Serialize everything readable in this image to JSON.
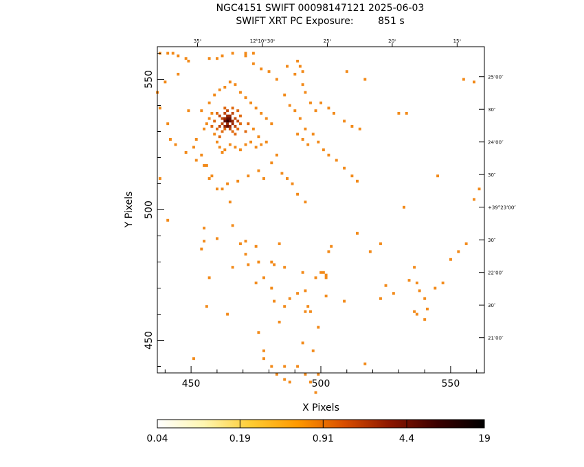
{
  "chart_data": {
    "type": "heatmap",
    "title": "NGC4151 SWIFT 00098147121 2025-06-03",
    "subtitle": "SWIFT XRT PC Exposure:        851 s",
    "xlabel": "X Pixels",
    "ylabel": "Y Pixels",
    "xlim": [
      437,
      563
    ],
    "ylim": [
      437.5,
      562.5
    ],
    "x_ticks": [
      450,
      500,
      550
    ],
    "x_tick_labels": [
      "450",
      "500",
      "550"
    ],
    "y_ticks": [
      450,
      500,
      550
    ],
    "y_tick_labels": [
      "450",
      "500",
      "550"
    ],
    "ra_ticks": [
      {
        "x": 452.5,
        "label": "35ˢ"
      },
      {
        "x": 477.5,
        "label": "12ʰ10ᵐ30ˢ"
      },
      {
        "x": 502.5,
        "label": "25ˢ"
      },
      {
        "x": 527.5,
        "label": "20ˢ"
      },
      {
        "x": 552.5,
        "label": "15ˢ"
      }
    ],
    "dec_ticks": [
      {
        "y": 551,
        "label": "25’00″"
      },
      {
        "y": 538.5,
        "label": "30″"
      },
      {
        "y": 526,
        "label": "24’00″"
      },
      {
        "y": 513.5,
        "label": "30″"
      },
      {
        "y": 501,
        "label": "+39°23’00″"
      },
      {
        "y": 488.5,
        "label": "30″"
      },
      {
        "y": 476,
        "label": "22’00″"
      },
      {
        "y": 463.5,
        "label": "30″"
      },
      {
        "y": 451,
        "label": "21’00″"
      }
    ],
    "colorbar": {
      "scale": "log",
      "min": 0.04,
      "max": 19,
      "tick_labels": [
        "0.04",
        "0.19",
        "0.91",
        "4.4",
        "19"
      ],
      "tick_values": [
        0.04,
        0.19,
        0.91,
        4.4,
        19
      ],
      "colors": [
        "#ffffff",
        "#fff6b0",
        "#ffcc33",
        "#ff9900",
        "#d94e00",
        "#8a1500",
        "#3a0000",
        "#000000"
      ]
    },
    "counts_colors": {
      "1": "#f28a1a",
      "2": "#e06a10",
      "3": "#c24a0a",
      "4": "#9c2a05",
      "6": "#6a0f00",
      "10": "#3a0000"
    },
    "source_center": [
      464,
      533.5
    ],
    "pixels": [
      [
        438,
        560,
        1
      ],
      [
        441,
        560,
        1
      ],
      [
        443,
        560,
        1
      ],
      [
        445,
        559,
        1
      ],
      [
        448,
        558,
        1
      ],
      [
        449,
        557,
        1
      ],
      [
        457,
        558,
        1
      ],
      [
        460,
        558,
        1
      ],
      [
        462,
        559,
        1
      ],
      [
        466,
        560,
        1
      ],
      [
        471,
        559,
        1
      ],
      [
        474,
        560,
        1
      ],
      [
        437,
        545,
        1
      ],
      [
        440,
        549,
        1
      ],
      [
        445,
        552,
        1
      ],
      [
        449,
        538,
        1
      ],
      [
        441,
        533,
        1
      ],
      [
        438,
        539,
        1
      ],
      [
        442,
        527,
        1
      ],
      [
        444,
        525,
        1
      ],
      [
        448,
        522,
        1
      ],
      [
        452,
        519,
        1
      ],
      [
        456,
        517,
        1
      ],
      [
        458,
        513,
        1
      ],
      [
        462,
        508,
        1
      ],
      [
        465,
        503,
        1
      ],
      [
        438,
        512,
        1
      ],
      [
        441,
        496,
        1
      ],
      [
        455,
        493,
        1
      ],
      [
        455,
        488,
        1
      ],
      [
        454,
        485,
        1
      ],
      [
        457,
        474,
        1
      ],
      [
        466,
        494,
        1
      ],
      [
        460,
        489,
        1
      ],
      [
        469,
        487,
        1
      ],
      [
        471,
        488,
        1
      ],
      [
        471,
        483,
        1
      ],
      [
        472,
        479,
        1
      ],
      [
        475,
        486,
        1
      ],
      [
        476,
        480,
        1
      ],
      [
        481,
        480,
        1
      ],
      [
        482,
        479,
        1
      ],
      [
        484,
        487,
        1
      ],
      [
        486,
        478,
        1
      ],
      [
        466,
        478,
        1
      ],
      [
        475,
        472,
        1
      ],
      [
        478,
        474,
        1
      ],
      [
        481,
        470,
        1
      ],
      [
        482,
        465,
        1
      ],
      [
        484,
        457,
        1
      ],
      [
        486,
        463,
        1
      ],
      [
        488,
        466,
        1
      ],
      [
        491,
        468,
        1
      ],
      [
        493,
        476,
        1
      ],
      [
        494,
        469,
        1
      ],
      [
        495,
        463,
        1
      ],
      [
        496,
        461,
        1
      ],
      [
        499,
        455,
        1
      ],
      [
        493,
        449,
        1
      ],
      [
        497,
        446,
        1
      ],
      [
        499,
        437,
        1
      ],
      [
        476,
        453,
        1
      ],
      [
        478,
        446,
        1
      ],
      [
        481,
        440,
        1
      ],
      [
        483,
        437,
        1
      ],
      [
        486,
        435,
        1
      ],
      [
        488,
        434,
        1
      ],
      [
        491,
        440,
        1
      ],
      [
        494,
        437,
        1
      ],
      [
        496,
        434,
        1
      ],
      [
        498,
        430,
        1
      ],
      [
        498,
        474,
        1
      ],
      [
        500,
        476,
        1
      ],
      [
        501,
        476,
        1
      ],
      [
        502,
        474,
        1
      ],
      [
        502,
        475,
        1
      ],
      [
        503,
        484,
        1
      ],
      [
        504,
        486,
        1
      ],
      [
        514,
        491,
        1
      ],
      [
        519,
        484,
        1
      ],
      [
        523,
        487,
        1
      ],
      [
        525,
        471,
        1
      ],
      [
        528,
        468,
        1
      ],
      [
        534,
        473,
        1
      ],
      [
        536,
        478,
        1
      ],
      [
        537,
        472,
        1
      ],
      [
        538,
        469,
        1
      ],
      [
        540,
        466,
        1
      ],
      [
        541,
        462,
        1
      ],
      [
        544,
        470,
        1
      ],
      [
        547,
        472,
        1
      ],
      [
        550,
        481,
        1
      ],
      [
        553,
        484,
        1
      ],
      [
        556,
        487,
        1
      ],
      [
        451,
        443,
        1
      ],
      [
        456,
        463,
        1
      ],
      [
        464,
        460,
        1
      ],
      [
        478,
        443,
        1
      ],
      [
        486,
        440,
        1
      ],
      [
        494,
        461,
        1
      ],
      [
        502,
        467,
        1
      ],
      [
        509,
        465,
        1
      ],
      [
        517,
        441,
        1
      ],
      [
        523,
        466,
        1
      ],
      [
        536,
        461,
        1
      ],
      [
        537,
        460,
        1
      ],
      [
        540,
        458,
        1
      ],
      [
        451,
        524,
        1
      ],
      [
        452,
        527,
        1
      ],
      [
        454,
        521,
        1
      ],
      [
        455,
        517,
        1
      ],
      [
        457,
        512,
        1
      ],
      [
        460,
        508,
        1
      ],
      [
        464,
        510,
        1
      ],
      [
        468,
        511,
        1
      ],
      [
        472,
        513,
        1
      ],
      [
        476,
        515,
        1
      ],
      [
        478,
        512,
        1
      ],
      [
        481,
        518,
        1
      ],
      [
        483,
        521,
        1
      ],
      [
        485,
        514,
        1
      ],
      [
        487,
        512,
        1
      ],
      [
        489,
        510,
        1
      ],
      [
        491,
        506,
        1
      ],
      [
        494,
        503,
        1
      ],
      [
        471,
        560,
        1
      ],
      [
        474,
        556,
        1
      ],
      [
        477,
        554,
        1
      ],
      [
        480,
        553,
        1
      ],
      [
        483,
        550,
        1
      ],
      [
        487,
        555,
        1
      ],
      [
        490,
        552,
        1
      ],
      [
        493,
        548,
        1
      ],
      [
        494,
        545,
        1
      ],
      [
        496,
        541,
        1
      ],
      [
        498,
        538,
        1
      ],
      [
        500,
        541,
        1
      ],
      [
        503,
        539,
        1
      ],
      [
        505,
        537,
        1
      ],
      [
        509,
        534,
        1
      ],
      [
        512,
        532,
        1
      ],
      [
        515,
        531,
        1
      ],
      [
        486,
        544,
        1
      ],
      [
        488,
        540,
        1
      ],
      [
        490,
        538,
        1
      ],
      [
        492,
        535,
        1
      ],
      [
        494,
        531,
        1
      ],
      [
        497,
        529,
        1
      ],
      [
        499,
        526,
        1
      ],
      [
        501,
        523,
        1
      ],
      [
        503,
        521,
        1
      ],
      [
        506,
        519,
        1
      ],
      [
        509,
        516,
        1
      ],
      [
        512,
        513,
        1
      ],
      [
        514,
        511,
        1
      ],
      [
        491,
        529,
        1
      ],
      [
        493,
        527,
        1
      ],
      [
        495,
        525,
        1
      ],
      [
        510,
        553,
        1
      ],
      [
        517,
        550,
        1
      ],
      [
        530,
        537,
        1
      ],
      [
        533,
        537,
        1
      ],
      [
        545,
        513,
        1
      ],
      [
        532,
        501,
        1
      ],
      [
        555,
        550,
        1
      ],
      [
        559,
        549,
        1
      ],
      [
        559,
        504,
        1
      ],
      [
        561,
        508,
        1
      ],
      [
        491,
        557,
        1
      ],
      [
        492,
        555,
        1
      ],
      [
        493,
        553,
        1
      ],
      [
        455,
        531,
        1
      ],
      [
        456,
        533,
        1
      ],
      [
        457,
        535,
        1
      ],
      [
        458,
        537,
        1
      ],
      [
        459,
        529,
        1
      ],
      [
        460,
        526,
        1
      ],
      [
        461,
        524,
        1
      ],
      [
        462,
        522,
        1
      ],
      [
        463,
        523,
        1
      ],
      [
        465,
        525,
        1
      ],
      [
        467,
        524,
        1
      ],
      [
        469,
        523,
        1
      ],
      [
        471,
        525,
        1
      ],
      [
        473,
        526,
        1
      ],
      [
        475,
        524,
        1
      ],
      [
        477,
        525,
        1
      ],
      [
        479,
        526,
        1
      ],
      [
        454,
        538,
        1
      ],
      [
        457,
        541,
        1
      ],
      [
        459,
        544,
        1
      ],
      [
        461,
        546,
        1
      ],
      [
        463,
        547,
        1
      ],
      [
        465,
        549,
        1
      ],
      [
        467,
        548,
        1
      ],
      [
        469,
        545,
        1
      ],
      [
        471,
        543,
        1
      ],
      [
        473,
        541,
        1
      ],
      [
        475,
        539,
        1
      ],
      [
        477,
        537,
        1
      ],
      [
        479,
        535,
        1
      ],
      [
        481,
        533,
        1
      ],
      [
        474,
        531,
        1
      ],
      [
        476,
        528,
        1
      ],
      [
        461,
        528,
        2
      ],
      [
        462,
        530,
        2
      ],
      [
        463,
        531,
        2
      ],
      [
        466,
        530,
        2
      ],
      [
        467,
        529,
        2
      ],
      [
        468,
        531,
        2
      ],
      [
        469,
        533,
        2
      ],
      [
        469,
        536,
        2
      ],
      [
        468,
        538,
        2
      ],
      [
        466,
        539,
        2
      ],
      [
        463,
        539,
        2
      ],
      [
        460,
        537,
        2
      ],
      [
        459,
        534,
        2
      ],
      [
        460,
        531,
        2
      ],
      [
        471,
        530,
        2
      ],
      [
        472,
        533,
        2
      ],
      [
        458,
        532,
        2
      ],
      [
        461,
        532,
        3
      ],
      [
        462,
        535,
        3
      ],
      [
        463,
        537,
        3
      ],
      [
        466,
        537,
        3
      ],
      [
        467,
        535,
        3
      ],
      [
        467,
        532,
        3
      ],
      [
        465,
        531,
        3
      ],
      [
        462,
        533,
        3
      ],
      [
        468,
        534,
        3
      ],
      [
        464,
        538,
        3
      ],
      [
        461,
        536,
        3
      ],
      [
        463,
        532,
        4
      ],
      [
        464,
        533,
        4
      ],
      [
        465,
        532,
        4
      ],
      [
        466,
        534,
        4
      ],
      [
        464,
        536,
        4
      ],
      [
        465,
        536,
        4
      ],
      [
        463,
        535,
        4
      ],
      [
        466,
        533,
        4
      ],
      [
        463,
        534,
        6
      ],
      [
        465,
        534,
        6
      ],
      [
        464,
        535,
        6
      ],
      [
        465,
        535,
        6
      ],
      [
        464,
        532,
        6
      ],
      [
        464,
        534,
        10
      ]
    ]
  }
}
